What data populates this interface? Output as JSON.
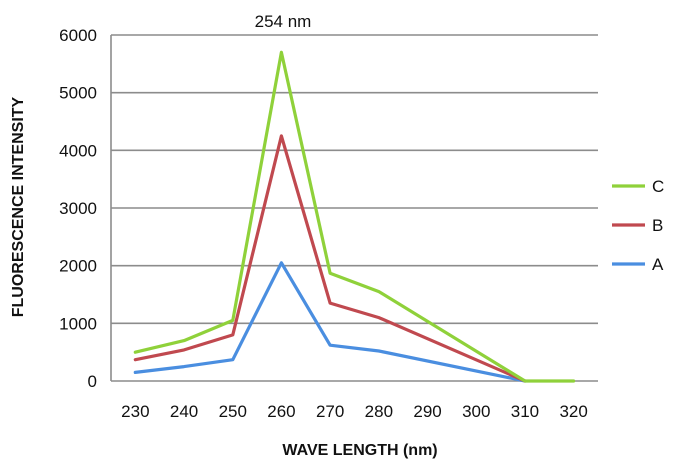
{
  "chart_data": {
    "type": "line",
    "title": "",
    "annotation": "254 nm",
    "xlabel": "WAVE LENGTH (nm)",
    "ylabel": "FLUORESCENCE INTENSITY",
    "x": [
      230,
      240,
      250,
      260,
      270,
      280,
      290,
      300,
      310,
      320
    ],
    "xlim": [
      225,
      325
    ],
    "ylim": [
      0,
      6000
    ],
    "yticks": [
      0,
      1000,
      2000,
      3000,
      4000,
      5000,
      6000
    ],
    "grid": "horizontal",
    "legend_position": "right",
    "series": [
      {
        "name": "C",
        "color": "#8fd13a",
        "values": [
          500,
          700,
          1050,
          5700,
          1870,
          1550,
          null,
          null,
          0,
          0
        ]
      },
      {
        "name": "B",
        "color": "#c0494f",
        "values": [
          370,
          540,
          800,
          4250,
          1350,
          1100,
          null,
          null,
          0,
          null
        ]
      },
      {
        "name": "A",
        "color": "#4a8ee0",
        "values": [
          150,
          250,
          370,
          2050,
          620,
          520,
          null,
          null,
          0,
          null
        ]
      }
    ]
  }
}
